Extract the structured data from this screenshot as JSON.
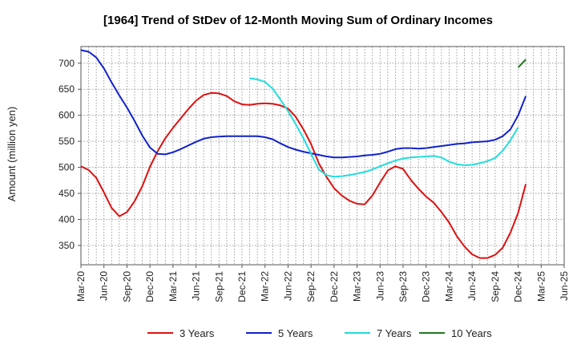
{
  "chart_data": {
    "type": "line",
    "title": "[1964]  Trend of StDev of 12-Month Moving Sum of Ordinary Incomes",
    "xlabel": "",
    "ylabel": "Amount (million yen)",
    "ylim": [
      313,
      732
    ],
    "yticks": [
      350,
      400,
      450,
      500,
      550,
      600,
      650,
      700
    ],
    "x_start": "Mar-20",
    "x_end": "Jun-25",
    "grid": true,
    "legend_position": "bottom",
    "x_tick_labels": [
      "Mar-20",
      "Jun-20",
      "Sep-20",
      "Dec-20",
      "Mar-21",
      "Jun-21",
      "Sep-21",
      "Dec-21",
      "Mar-22",
      "Jun-22",
      "Sep-22",
      "Dec-22",
      "Mar-23",
      "Jun-23",
      "Sep-23",
      "Dec-23",
      "Mar-24",
      "Jun-24",
      "Sep-24",
      "Dec-24",
      "Mar-25",
      "Jun-25"
    ],
    "series": [
      {
        "name": "3 Years",
        "color": "#dd1111",
        "start_index": 0,
        "values": [
          502,
          495,
          480,
          452,
          422,
          406,
          414,
          435,
          464,
          501,
          531,
          556,
          576,
          594,
          612,
          628,
          639,
          643,
          642,
          637,
          627,
          621,
          620,
          622,
          623,
          622,
          619,
          613,
          597,
          573,
          545,
          508,
          482,
          460,
          446,
          436,
          430,
          429,
          446,
          471,
          494,
          502,
          497,
          476,
          459,
          444,
          432,
          414,
          394,
          368,
          348,
          333,
          326,
          326,
          332,
          346,
          375,
          413,
          468
        ]
      },
      {
        "name": "5 Years",
        "color": "#1122cc",
        "start_index": 0,
        "values": [
          725,
          722,
          711,
          690,
          663,
          638,
          615,
          589,
          561,
          538,
          526,
          525,
          529,
          535,
          542,
          549,
          555,
          558,
          559,
          560,
          560,
          560,
          560,
          560,
          558,
          554,
          546,
          539,
          534,
          530,
          527,
          524,
          521,
          519,
          519,
          520,
          521,
          523,
          524,
          526,
          530,
          535,
          537,
          537,
          536,
          537,
          539,
          541,
          543,
          545,
          546,
          548,
          549,
          550,
          553,
          560,
          573,
          600,
          637
        ]
      },
      {
        "name": "7 Years",
        "color": "#22dddd",
        "start_index": 22,
        "values": [
          671,
          669,
          664,
          651,
          630,
          608,
          583,
          556,
          526,
          496,
          485,
          482,
          483,
          485,
          488,
          491,
          496,
          502,
          508,
          513,
          517,
          519,
          520,
          521,
          522,
          519,
          511,
          506,
          504,
          505,
          508,
          512,
          518,
          532,
          552,
          577
        ]
      },
      {
        "name": "10 Years",
        "color": "#227722",
        "start_index": 57,
        "values": [
          692,
          707
        ]
      }
    ]
  }
}
